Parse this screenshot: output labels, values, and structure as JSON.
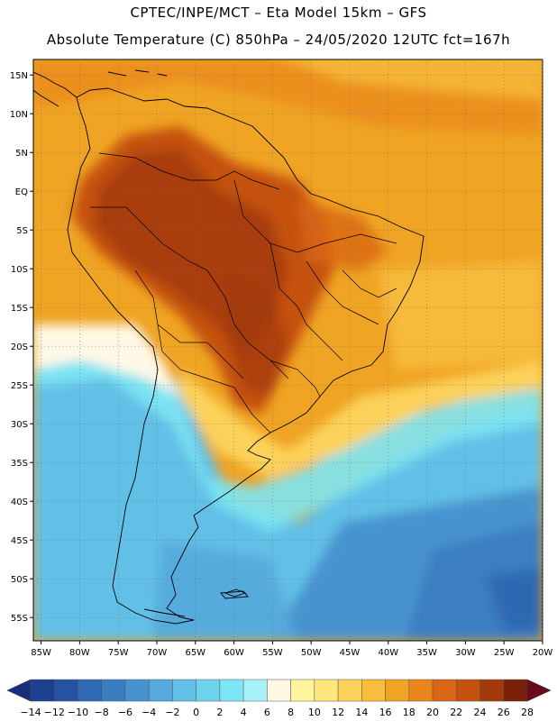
{
  "header": {
    "line1": "CPTEC/INPE/MCT –  Eta Model 15km – GFS",
    "line2": "Absolute Temperature (C) 850hPa – 24/05/2020 12UTC fct=167h"
  },
  "axes": {
    "lat_labels": [
      "15N",
      "10N",
      "5N",
      "EQ",
      "5S",
      "10S",
      "15S",
      "20S",
      "25S",
      "30S",
      "35S",
      "40S",
      "45S",
      "50S",
      "55S"
    ],
    "lat_values": [
      15,
      10,
      5,
      0,
      -5,
      -10,
      -15,
      -20,
      -25,
      -30,
      -35,
      -40,
      -45,
      -50,
      -55
    ],
    "lon_labels": [
      "85W",
      "80W",
      "75W",
      "70W",
      "65W",
      "60W",
      "55W",
      "50W",
      "45W",
      "40W",
      "35W",
      "30W",
      "25W",
      "20W"
    ],
    "lon_values": [
      -85,
      -80,
      -75,
      -70,
      -65,
      -60,
      -55,
      -50,
      -45,
      -40,
      -35,
      -30,
      -25,
      -20
    ],
    "lat_range": [
      -58,
      17
    ],
    "lon_range": [
      -86,
      -20
    ]
  },
  "colorbar": {
    "labels": [
      "-14",
      "-12",
      "-10",
      "-8",
      "-6",
      "-4",
      "-2",
      "0",
      "2",
      "4",
      "6",
      "8",
      "10",
      "12",
      "14",
      "16",
      "18",
      "20",
      "22",
      "24",
      "26",
      "28"
    ],
    "colors": [
      "#1c3f8f",
      "#2653a1",
      "#2f68b3",
      "#3a7ec2",
      "#4693cf",
      "#55a9dc",
      "#62c0e6",
      "#6fd3ee",
      "#7de6f4",
      "#a9f2fa",
      "#fff8e6",
      "#fff59e",
      "#ffe67a",
      "#fcd25a",
      "#f7bd3d",
      "#f0a424",
      "#e8861b",
      "#d86614",
      "#c5510f",
      "#a33a0c",
      "#7a2209"
    ],
    "low_color": "#1a2f7a",
    "high_color": "#6a0a1a"
  },
  "colors": {
    "orange": "#f0a424",
    "deep": "#c5510f",
    "mid": "#e8861b",
    "yellow": "#fcd25a",
    "cyan": "#62c0e6",
    "blue": "#3a7ec2",
    "pale": "#fff8e6"
  }
}
